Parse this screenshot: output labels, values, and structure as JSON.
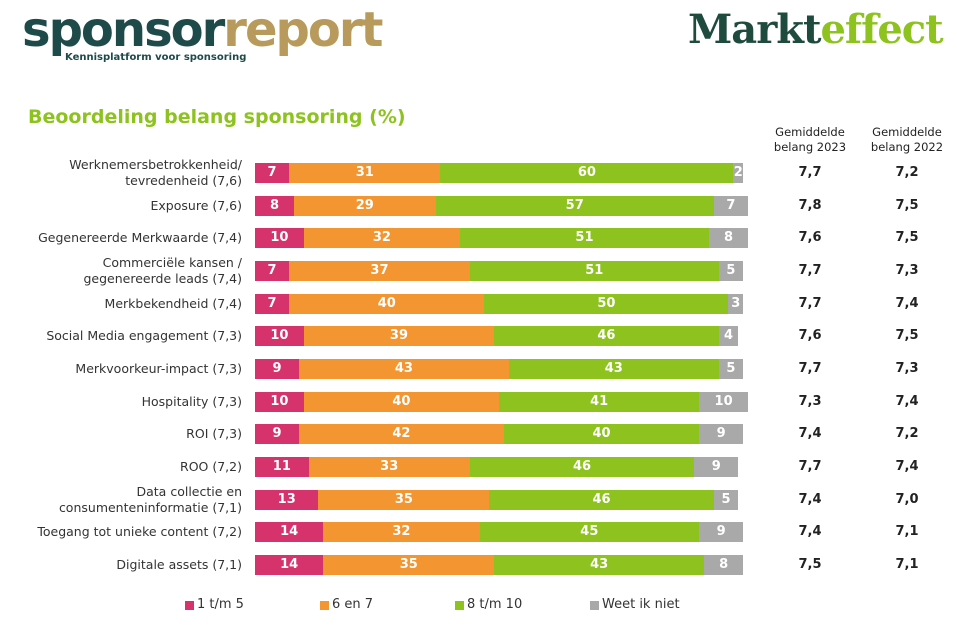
{
  "header": {
    "brand_left": [
      "sponsor",
      "report"
    ],
    "brand_left_tagline": "Kennisplatform voor sponsoring",
    "brand_right": [
      "Markt",
      "effect"
    ]
  },
  "chart_data": {
    "type": "stacked-bar-horizontal",
    "title": "Beoordeling belang sponsoring (%)",
    "categories": [
      "Werknemersbetrokkenheid/\ntevredenheid (7,6)",
      "Exposure (7,6)",
      "Gegenereerde Merkwaarde (7,4)",
      "Commerciële kansen /\ngegenereerde leads (7,4)",
      "Merkbekendheid (7,4)",
      "Social Media engagement (7,3)",
      "Merkvoorkeur-impact (7,3)",
      "Hospitality (7,3)",
      "ROI (7,3)",
      "ROO (7,2)",
      "Data collectie en\nconsumenteninformatie (7,1)",
      "Toegang tot unieke content (7,2)",
      "Digitale assets (7,1)"
    ],
    "series": [
      {
        "name": "1 t/m 5",
        "color": "#d6336c",
        "values": [
          7,
          8,
          10,
          7,
          7,
          10,
          9,
          10,
          9,
          11,
          13,
          14,
          14
        ]
      },
      {
        "name": "6 en 7",
        "color": "#f39530",
        "values": [
          31,
          29,
          32,
          37,
          40,
          39,
          43,
          40,
          42,
          33,
          35,
          32,
          35
        ]
      },
      {
        "name": "8 t/m 10",
        "color": "#8dc21f",
        "values": [
          60,
          57,
          51,
          51,
          50,
          46,
          43,
          41,
          40,
          46,
          46,
          45,
          43
        ]
      },
      {
        "name": "Weet ik niet",
        "color": "#a9a9a9",
        "values": [
          2,
          7,
          8,
          5,
          3,
          4,
          5,
          10,
          9,
          9,
          5,
          9,
          8
        ]
      }
    ],
    "columns": [
      {
        "header": "Gemiddelde\nbelang 2023",
        "values": [
          "7,7",
          "7,8",
          "7,6",
          "7,7",
          "7,7",
          "7,6",
          "7,7",
          "7,3",
          "7,4",
          "7,7",
          "7,4",
          "7,4",
          "7,5"
        ]
      },
      {
        "header": "Gemiddelde\nbelang 2022",
        "values": [
          "7,2",
          "7,5",
          "7,5",
          "7,3",
          "7,4",
          "7,5",
          "7,3",
          "7,4",
          "7,2",
          "7,4",
          "7,0",
          "7,1",
          "7,1"
        ]
      }
    ]
  }
}
